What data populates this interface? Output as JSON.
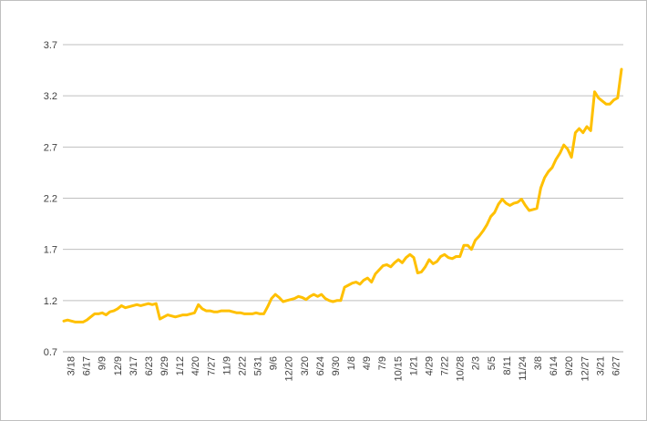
{
  "chart_data": {
    "type": "line",
    "title": "",
    "xlabel": "",
    "ylabel": "",
    "ylim": [
      0.7,
      3.7
    ],
    "y_ticks": [
      0.7,
      1.2,
      1.7,
      2.2,
      2.7,
      3.2,
      3.7
    ],
    "y_tick_labels": [
      "0.7",
      "1.2",
      "1.7",
      "2.2",
      "2.7",
      "3.2",
      "3.7"
    ],
    "x_tick_labels": [
      "3/18",
      "6/17",
      "9/9",
      "12/9",
      "3/17",
      "6/23",
      "9/29",
      "1/12",
      "4/20",
      "7/27",
      "11/9",
      "2/22",
      "5/31",
      "9/6",
      "12/20",
      "3/20",
      "6/24",
      "9/30",
      "1/8",
      "4/9",
      "7/9",
      "10/15",
      "1/21",
      "4/29",
      "7/22",
      "10/28",
      "2/3",
      "5/5",
      "8/11",
      "11/24",
      "3/8",
      "6/14",
      "9/20",
      "12/27",
      "3/21",
      "6/27"
    ],
    "grid": "horizontal",
    "line_color": "#FFC000",
    "series": [
      {
        "values": [
          1.0,
          1.01,
          1.0,
          0.99,
          0.99,
          0.99,
          1.01,
          1.04,
          1.07,
          1.07,
          1.08,
          1.06,
          1.09,
          1.1,
          1.12,
          1.15,
          1.13,
          1.14,
          1.15,
          1.16,
          1.15,
          1.16,
          1.17,
          1.16,
          1.17,
          1.02,
          1.04,
          1.06,
          1.05,
          1.04,
          1.05,
          1.06,
          1.06,
          1.07,
          1.08,
          1.16,
          1.12,
          1.1,
          1.1,
          1.09,
          1.09,
          1.1,
          1.1,
          1.1,
          1.09,
          1.08,
          1.08,
          1.07,
          1.07,
          1.07,
          1.08,
          1.07,
          1.07,
          1.14,
          1.22,
          1.26,
          1.23,
          1.19,
          1.2,
          1.21,
          1.22,
          1.24,
          1.23,
          1.21,
          1.24,
          1.26,
          1.24,
          1.26,
          1.22,
          1.2,
          1.19,
          1.2,
          1.2,
          1.33,
          1.35,
          1.37,
          1.38,
          1.36,
          1.4,
          1.42,
          1.38,
          1.46,
          1.5,
          1.54,
          1.55,
          1.53,
          1.57,
          1.6,
          1.57,
          1.62,
          1.65,
          1.62,
          1.47,
          1.48,
          1.53,
          1.6,
          1.56,
          1.58,
          1.63,
          1.65,
          1.62,
          1.61,
          1.63,
          1.63,
          1.74,
          1.74,
          1.7,
          1.79,
          1.83,
          1.88,
          1.94,
          2.02,
          2.06,
          2.14,
          2.19,
          2.15,
          2.13,
          2.15,
          2.16,
          2.19,
          2.13,
          2.08,
          2.09,
          2.1,
          2.3,
          2.4,
          2.46,
          2.5,
          2.58,
          2.64,
          2.72,
          2.68,
          2.6,
          2.84,
          2.88,
          2.84,
          2.9,
          2.86,
          3.24,
          3.18,
          3.15,
          3.12,
          3.12,
          3.16,
          3.18,
          3.46
        ]
      }
    ]
  }
}
